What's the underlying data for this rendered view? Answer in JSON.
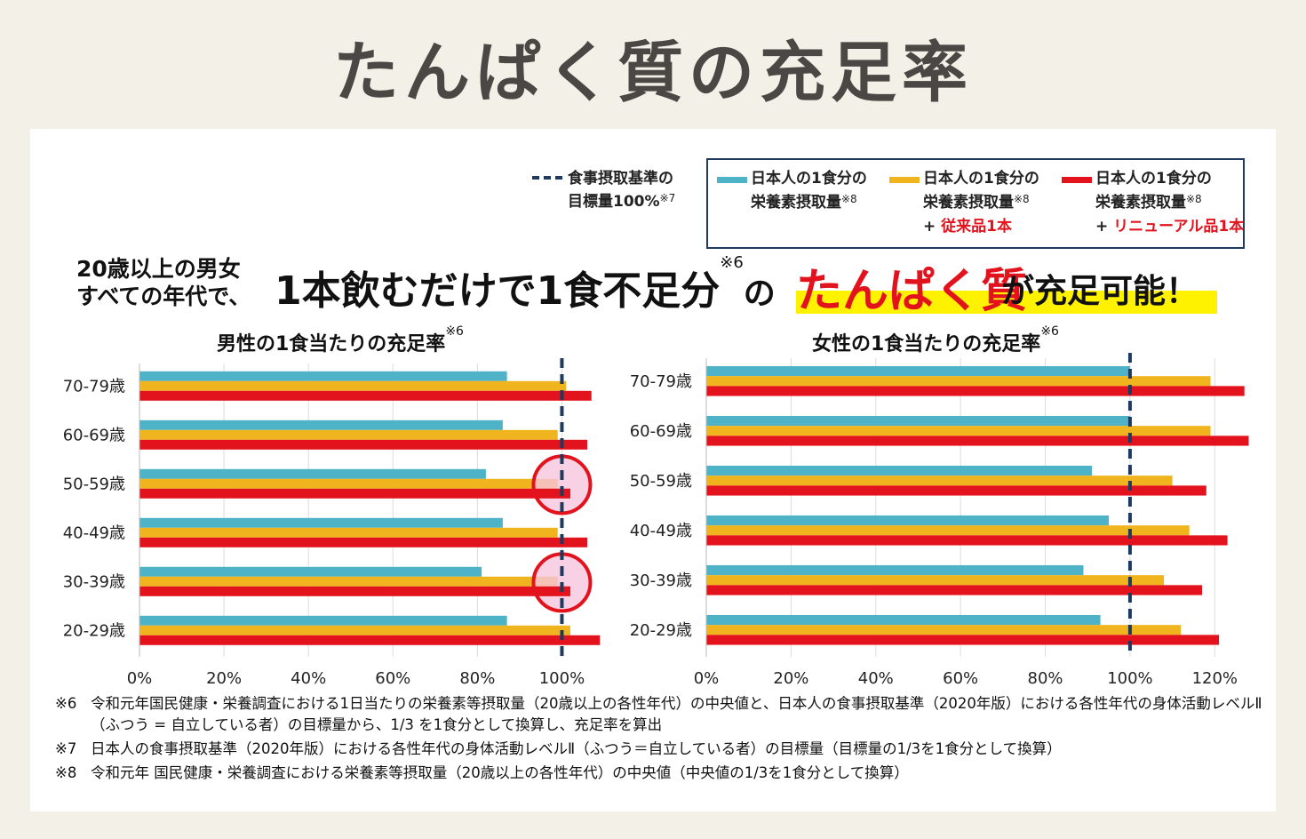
{
  "page": {
    "title": "たんぱく質の充足率"
  },
  "legend": {
    "guide": {
      "line1": "食事摂取基準の",
      "line2": "目標量100%",
      "note": "※7"
    },
    "items": [
      {
        "line1": "日本人の1食分の",
        "line2": "栄養素摂取量",
        "note": "※8",
        "extra_plus": "",
        "extra": "",
        "color": "#4eb3c6"
      },
      {
        "line1": "日本人の1食分の",
        "line2": "栄養素摂取量",
        "note": "※8",
        "extra_plus": "+ ",
        "extra": "従来品1本",
        "color": "#f0b41e"
      },
      {
        "line1": "日本人の1食分の",
        "line2": "栄養素摂取量",
        "note": "※8",
        "extra_plus": "+ ",
        "extra": "リニューアル品1本",
        "color": "#e3131e"
      }
    ]
  },
  "headline": {
    "left_line1": "20歳以上の男女",
    "left_line2": "すべての年代で、",
    "main": "1本飲むだけで1食不足分",
    "main_note": "※6",
    "connector": "の",
    "emphasis": "たんぱく質",
    "ending": "が充足可能！"
  },
  "colors": {
    "base": "#4eb3c6",
    "old": "#f0b41e",
    "renewal": "#e3131e",
    "guide": "#1e3a5f",
    "circle": "#e3131e",
    "circle_fill": "#f7c6dd"
  },
  "chart_data": [
    {
      "type": "bar",
      "orientation": "horizontal",
      "title": "男性の1食当たりの充足率",
      "title_note": "※6",
      "categories": [
        "70-79歳",
        "60-69歳",
        "50-59歳",
        "40-49歳",
        "30-39歳",
        "20-29歳"
      ],
      "series": [
        {
          "name": "日本人の1食分の栄養素摂取量",
          "values": [
            87,
            86,
            82,
            86,
            81,
            87
          ]
        },
        {
          "name": "日本人の1食分の栄養素摂取量 + 従来品1本",
          "values": [
            101,
            99,
            99,
            99,
            99,
            102
          ]
        },
        {
          "name": "日本人の1食分の栄養素摂取量 + リニューアル品1本",
          "values": [
            107,
            106,
            102,
            106,
            102,
            109
          ]
        }
      ],
      "xlim": [
        0,
        110
      ],
      "xticks": [
        "0%",
        "20%",
        "40%",
        "60%",
        "80%",
        "100%"
      ],
      "reference_line": 100,
      "highlighted_categories": [
        "50-59歳",
        "30-39歳"
      ]
    },
    {
      "type": "bar",
      "orientation": "horizontal",
      "title": "女性の1食当たりの充足率",
      "title_note": "※6",
      "categories": [
        "70-79歳",
        "60-69歳",
        "50-59歳",
        "40-49歳",
        "30-39歳",
        "20-29歳"
      ],
      "series": [
        {
          "name": "日本人の1食分の栄養素摂取量",
          "values": [
            100,
            100,
            91,
            95,
            89,
            93
          ]
        },
        {
          "name": "日本人の1食分の栄養素摂取量 + 従来品1本",
          "values": [
            119,
            119,
            110,
            114,
            108,
            112
          ]
        },
        {
          "name": "日本人の1食分の栄養素摂取量 + リニューアル品1本",
          "values": [
            127,
            128,
            118,
            123,
            117,
            121
          ]
        }
      ],
      "xlim": [
        0,
        130
      ],
      "xticks": [
        "0%",
        "20%",
        "40%",
        "60%",
        "80%",
        "100%",
        "120%"
      ],
      "reference_line": 100,
      "highlighted_categories": []
    }
  ],
  "notes": [
    {
      "mark": "※6",
      "text": "令和元年国民健康・栄養調査における1日当たりの栄養素等摂取量（20歳以上の各性年代）の中央値と、日本人の食事摂取基準（2020年版）における各性年代の身体活動レベルⅡ（ふつう = 自立している者）の目標量から、1/3 を1食分として換算し、充足率を算出"
    },
    {
      "mark": "※7",
      "text": "日本人の食事摂取基準（2020年版）における各性年代の身体活動レベルⅡ（ふつう＝自立している者）の目標量（目標量の1/3を1食分として換算）"
    },
    {
      "mark": "※8",
      "text": "令和元年 国民健康・栄養調査における栄養素等摂取量（20歳以上の各性年代）の中央値（中央値の1/3を1食分として換算）"
    }
  ]
}
